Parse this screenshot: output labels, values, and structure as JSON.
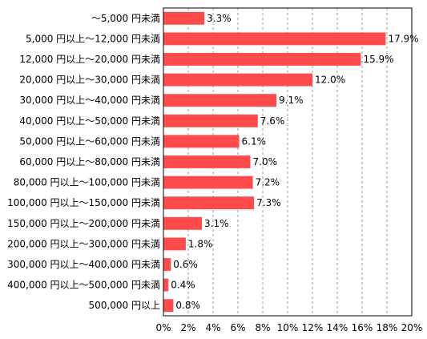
{
  "chart_data": {
    "type": "bar",
    "orientation": "horizontal",
    "categories": [
      "～5,000 円未満",
      "5,000 円以上～12,000 円未満",
      "12,000 円以上～20,000 円未満",
      "20,000 円以上～30,000 円未満",
      "30,000 円以上～40,000 円未満",
      "40,000 円以上～50,000 円未満",
      "50,000 円以上～60,000 円未満",
      "60,000 円以上～80,000 円未満",
      "80,000 円以上～100,000 円未満",
      "100,000 円以上～150,000 円未満",
      "150,000 円以上～200,000 円未満",
      "200,000 円以上～300,000 円未満",
      "300,000 円以上～400,000 円未満",
      "400,000 円以上～500,000 円未満",
      "500,000 円以上"
    ],
    "values": [
      3.3,
      17.9,
      15.9,
      12.0,
      9.1,
      7.6,
      6.1,
      7.0,
      7.2,
      7.3,
      3.1,
      1.8,
      0.6,
      0.4,
      0.8
    ],
    "value_labels": [
      "3.3%",
      "17.9%",
      "15.9%",
      "12.0%",
      "9.1%",
      "7.6%",
      "6.1%",
      "7.0%",
      "7.2%",
      "7.3%",
      "3.1%",
      "1.8%",
      "0.6%",
      "0.4%",
      "0.8%"
    ],
    "xlim": [
      0,
      20
    ],
    "x_ticks": [
      "0%",
      "2%",
      "4%",
      "6%",
      "8%",
      "10%",
      "12%",
      "14%",
      "16%",
      "18%",
      "20%"
    ],
    "grid": "vertical dashed",
    "bar_color": "#ff4b4b",
    "title": "",
    "xlabel": "",
    "ylabel": ""
  }
}
